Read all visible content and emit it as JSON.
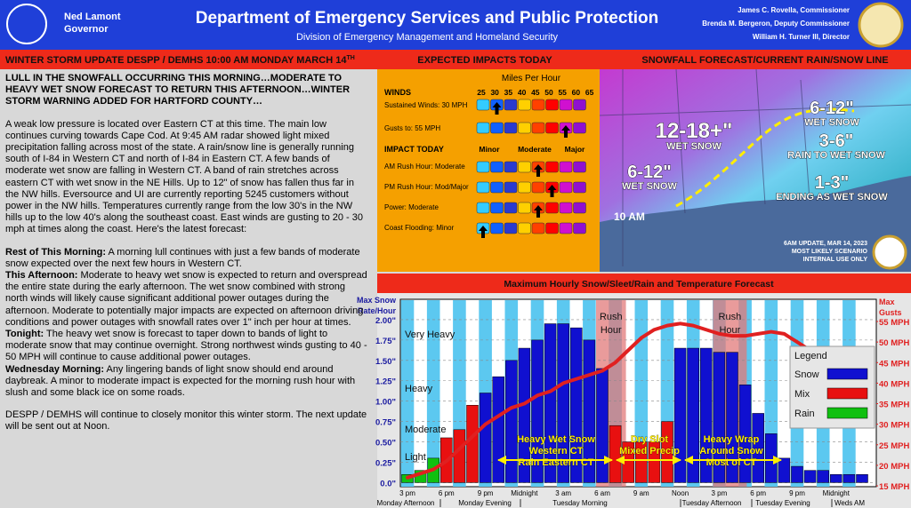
{
  "header": {
    "governor_name": "Ned Lamont",
    "governor_title": "Governor",
    "title": "Department of Emergency Services and Public Protection",
    "subtitle": "Division of Emergency Management and Homeland Security",
    "officials": [
      "James C. Rovella, Commissioner",
      "Brenda M. Bergeron, Deputy Commissioner",
      "William H. Turner III, Director"
    ]
  },
  "banner": {
    "left": "WINTER STORM UPDATE DESPP / DEMHS 10:00 AM MONDAY MARCH 14",
    "left_sup": "TH",
    "middle": "EXPECTED IMPACTS TODAY",
    "right": "SNOWFALL FORECAST/CURRENT RAIN/SNOW LINE"
  },
  "body": {
    "headline": "LULL IN THE SNOWFALL OCCURRING THIS MORNING…MODERATE TO HEAVY WET SNOW FORECAST TO RETURN THIS AFTERNOON…WINTER STORM WARNING ADDED FOR HARTFORD COUNTY…",
    "intro": "A weak low pressure is located over Eastern CT at this time.  The main low continues curving towards Cape Cod.  At 9:45 AM radar showed light mixed precipitation falling across most of the state.  A rain/snow line is generally running south of I-84 in Western CT and north of I-84 in Eastern CT.  A few bands of moderate wet snow are falling in Western CT.  A band of rain stretches across eastern CT with wet snow in the NE Hills.  Up to 12\" of snow has fallen thus far in the NW hills.  Eversource and UI are currently reporting 5245 customers without power in the NW hills.  Temperatures currently range from the low 30's in the NW hills up to the low 40's along the southeast coast.  East winds are gusting to 20 - 30 mph at times along the coast.  Here's the latest forecast:",
    "sections": [
      {
        "label": "Rest of This Morning:",
        "text": " A morning lull continues with just a few bands of moderate snow expected over the next few hours in Western CT."
      },
      {
        "label": "This Afternoon:",
        "text": " Moderate to heavy wet snow is expected to return and overspread the entire state during the early afternoon.  The wet snow combined with strong north winds will likely cause significant additional power outages during the afternoon.  Moderate to potentially major impacts are expected on afternoon driving conditions and power outages with snowfall rates over 1\" inch per hour at times."
      },
      {
        "label": "Tonight:",
        "text": " The heavy wet snow is forecast to taper down to bands of light to moderate snow that may continue overnight.  Strong northwest winds gusting to 40 - 50 MPH will continue to cause additional power outages."
      },
      {
        "label": "Wednesday Morning:",
        "text": " Any lingering bands of light snow should end around daybreak.  A minor to moderate impact is expected for the morning rush hour with slush and some black ice on some roads."
      }
    ],
    "closing": "DESPP / DEMHS will continue to closely monitor this winter storm.  The next update will be sent out at Noon."
  },
  "impacts": {
    "title": "Miles Per Hour",
    "winds_header": "WINDS",
    "scale": [
      25,
      30,
      35,
      40,
      45,
      50,
      55,
      60,
      65
    ],
    "wind_rows": [
      "Sustained Winds: 30 MPH",
      "Gusts to: 55 MPH"
    ],
    "impact_header": "IMPACT TODAY",
    "levels": [
      "Minor",
      "Moderate",
      "Major"
    ],
    "impact_rows": [
      "AM Rush Hour: Moderate",
      "PM Rush Hour: Mod/Major",
      "Power: Moderate",
      "Coast Flooding: Minor"
    ]
  },
  "map": {
    "labels": [
      [
        "12-18+\"",
        "WET SNOW"
      ],
      [
        "6-12\"",
        "WET SNOW"
      ],
      [
        "3-6\"",
        "RAIN TO WET SNOW"
      ],
      [
        "6-12\"",
        "WET SNOW"
      ],
      [
        "1-3\"",
        "ENDING AS WET SNOW"
      ]
    ],
    "time": "10 AM",
    "note": [
      "6AM UPDATE, MAR 14, 2023",
      "MOST LIKELY SCENARIO",
      "INTERNAL USE ONLY"
    ]
  },
  "chart_data": {
    "type": "bar",
    "title": "Maximum Hourly Snow/Sleet/Rain and Temperature Forecast",
    "y_label": [
      "Max Snow",
      "Rate/Hour"
    ],
    "y2_label": [
      "Max",
      "Gusts"
    ],
    "categories": [
      "3 pm",
      null,
      null,
      "6 pm",
      null,
      null,
      "9 pm",
      null,
      null,
      "Midnight",
      null,
      null,
      "3 am",
      null,
      null,
      "6 am",
      null,
      null,
      "9 am",
      null,
      null,
      "Noon",
      null,
      null,
      "3 pm",
      null,
      null,
      "6 pm",
      null,
      null,
      "9 pm",
      null,
      null,
      "Midnight",
      null,
      null
    ],
    "periods": [
      "Monday Afternoon",
      "Monday Evening",
      "Tuesday Morning",
      "Tuesday Afternoon",
      "Tuesday Evening",
      "Weds AM"
    ],
    "series": [
      {
        "name": "Snow",
        "color": "#1010d0",
        "values": [
          null,
          null,
          null,
          null,
          null,
          null,
          1.1,
          1.3,
          1.5,
          1.65,
          1.75,
          1.95,
          1.95,
          1.9,
          1.75,
          1.4,
          null,
          null,
          null,
          null,
          null,
          1.65,
          1.65,
          1.65,
          1.6,
          1.6,
          1.2,
          0.85,
          0.6,
          0.3,
          0.2,
          0.15,
          0.15,
          0.1,
          0.1,
          0.1
        ]
      },
      {
        "name": "Mix",
        "color": "#e81010",
        "values": [
          null,
          null,
          null,
          0.55,
          0.65,
          0.95,
          null,
          null,
          null,
          null,
          null,
          null,
          null,
          null,
          null,
          null,
          0.7,
          0.5,
          0.5,
          0.5,
          0.75,
          null,
          null,
          null,
          null,
          null,
          null,
          null,
          null,
          null,
          null,
          null,
          null,
          null,
          null,
          null
        ]
      },
      {
        "name": "Rain",
        "color": "#10c010",
        "values": [
          0.1,
          0.15,
          0.3,
          null,
          null,
          null,
          null,
          null,
          null,
          null,
          null,
          null,
          null,
          null,
          null,
          null,
          null,
          null,
          null,
          null,
          null,
          null,
          null,
          null,
          null,
          null,
          null,
          null,
          null,
          null,
          null,
          null,
          null,
          null,
          null,
          null
        ]
      },
      {
        "name": "Max Gusts",
        "color": "#e02020",
        "axis": "y2",
        "line": true,
        "values": [
          17,
          18,
          19,
          21,
          24,
          27,
          30,
          32,
          34,
          35,
          37,
          38,
          40,
          41,
          42,
          43,
          45,
          48,
          51,
          53,
          54,
          54.5,
          54,
          53,
          52,
          51.5,
          51.5,
          52,
          52.5,
          52,
          50,
          48,
          47,
          46,
          45.5,
          45
        ]
      }
    ],
    "legend_title": "Legend",
    "ylim": [
      -0.05,
      2.25
    ],
    "yticks": [
      {
        "value": 0,
        "label": "0.0\""
      },
      {
        "value": 0.25,
        "label": "0.25\""
      },
      {
        "value": 0.5,
        "label": "0.50\""
      },
      {
        "value": 0.75,
        "label": "0.75\""
      },
      {
        "value": 1,
        "label": "1.00\""
      },
      {
        "value": 1.25,
        "label": "1.25\""
      },
      {
        "value": 1.5,
        "label": "1.50\""
      },
      {
        "value": 1.75,
        "label": "1.75\""
      },
      {
        "value": 2,
        "label": "2.00\""
      }
    ],
    "y2lim": [
      14.8,
      60.4
    ],
    "y2ticks": [
      {
        "value": 15,
        "label": "15 MPH"
      },
      {
        "value": 20,
        "label": "20 MPH"
      },
      {
        "value": 25,
        "label": "25 MPH"
      },
      {
        "value": 30,
        "label": "30 MPH"
      },
      {
        "value": 35,
        "label": "35 MPH"
      },
      {
        "value": 40,
        "label": "40 MPH"
      },
      {
        "value": 45,
        "label": "45 MPH"
      },
      {
        "value": 50,
        "label": "50 MPH"
      },
      {
        "value": 55,
        "label": "55 MPH"
      }
    ],
    "grid": true,
    "intensity": [
      "Very Heavy",
      "Heavy",
      "Moderate",
      "Light"
    ],
    "rush": [
      [
        "Rush",
        "Hour"
      ],
      [
        "Rush",
        "Hour"
      ]
    ],
    "annotations": [
      [
        "Heavy Wet Snow",
        "Western CT",
        "Rain Eastern CT"
      ],
      [
        "Dry Slot",
        "Mixed Precip"
      ],
      [
        "Heavy Wrap",
        "Around Snow",
        "Most of CT"
      ]
    ]
  }
}
